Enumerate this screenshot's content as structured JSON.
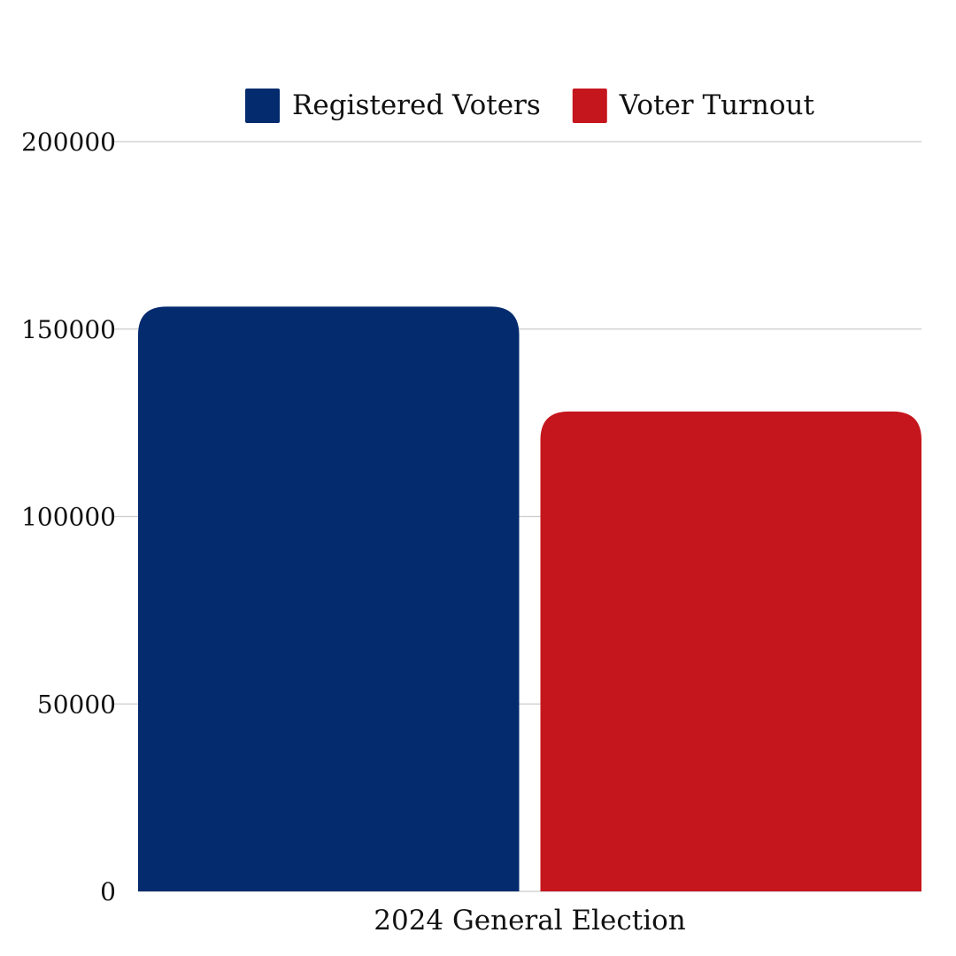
{
  "chart_data": {
    "type": "bar",
    "categories": [
      "2024 General Election"
    ],
    "series": [
      {
        "name": "Registered Voters",
        "values": [
          156000
        ],
        "color": "#032b6e"
      },
      {
        "name": "Voter Turnout",
        "values": [
          128000
        ],
        "color": "#c5161d"
      }
    ],
    "ylim": [
      0,
      200000
    ],
    "y_ticks": [
      "0",
      "50000",
      "100000",
      "150000",
      "200000"
    ],
    "y_tick_values": [
      0,
      50000,
      100000,
      150000,
      200000
    ],
    "legend_position": "top-center",
    "grid": true
  }
}
